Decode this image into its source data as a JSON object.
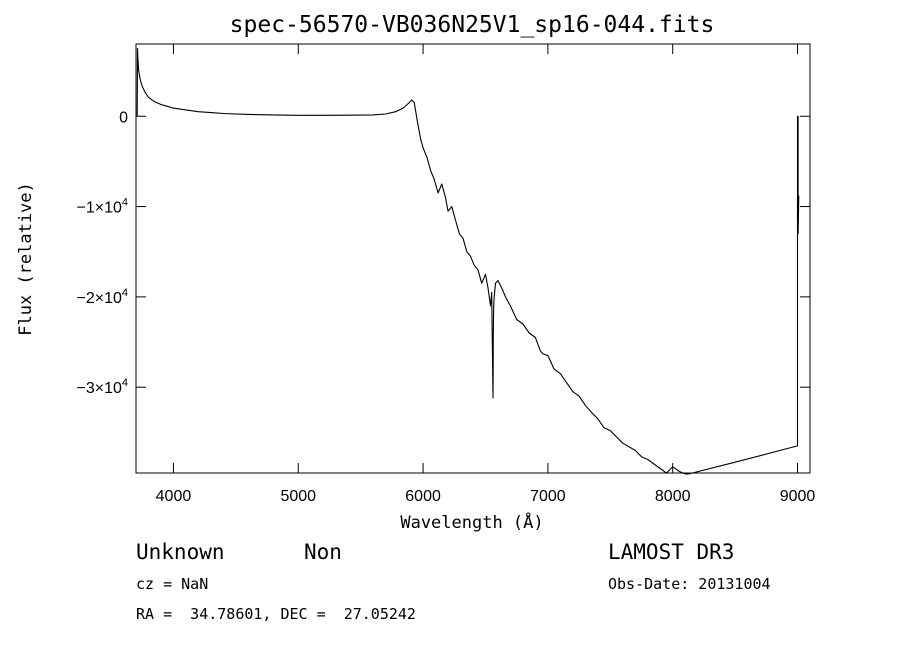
{
  "chart_data": {
    "type": "line",
    "title": "spec-56570-VB036N25V1_sp16-044.fits",
    "xlabel": "Wavelength (Å)",
    "ylabel": "Flux (relative)",
    "xlim": [
      3700,
      9100
    ],
    "ylim": [
      -39500,
      8000
    ],
    "grid": false,
    "x_ticks": [
      {
        "value": 4000,
        "label": "4000"
      },
      {
        "value": 5000,
        "label": "5000"
      },
      {
        "value": 6000,
        "label": "6000"
      },
      {
        "value": 7000,
        "label": "7000"
      },
      {
        "value": 8000,
        "label": "8000"
      },
      {
        "value": 9000,
        "label": "9000"
      }
    ],
    "y_ticks": [
      {
        "value": 0,
        "mantissa": "0",
        "exponent": ""
      },
      {
        "value": -10000,
        "mantissa": "−1×10",
        "exponent": "4"
      },
      {
        "value": -20000,
        "mantissa": "−2×10",
        "exponent": "4"
      },
      {
        "value": -30000,
        "mantissa": "−3×10",
        "exponent": "4"
      }
    ],
    "series": [
      {
        "x": [
          3710,
          3712,
          3716,
          3722,
          3735,
          3750,
          3775,
          3800,
          3850,
          3900,
          3950,
          4000,
          4100,
          4200,
          4300,
          4400,
          4600,
          4800,
          5000,
          5200,
          5400,
          5600,
          5700,
          5780,
          5840,
          5880,
          5910,
          5930,
          5950,
          5960,
          5980,
          6000,
          6030,
          6060,
          6090,
          6120,
          6150,
          6180,
          6200,
          6230,
          6260,
          6290,
          6320,
          6350,
          6380,
          6410,
          6440,
          6470,
          6500,
          6520,
          6540,
          6550,
          6555,
          6560,
          6563,
          6566,
          6570,
          6580,
          6600,
          6630,
          6660,
          6700,
          6750,
          6800,
          6850,
          6900,
          6940,
          6960,
          7000,
          7050,
          7100,
          7150,
          7200,
          7250,
          7300,
          7350,
          7400,
          7450,
          7500,
          7550,
          7600,
          7650,
          7700,
          7750,
          7800,
          7850,
          7900,
          7950,
          8000,
          8050,
          8100,
          8130,
          8500,
          9000,
          9000,
          9005,
          9005,
          9010
        ],
        "y": [
          0,
          7500,
          6200,
          5000,
          4000,
          3300,
          2600,
          2100,
          1600,
          1300,
          1100,
          900,
          700,
          500,
          400,
          300,
          200,
          150,
          100,
          100,
          120,
          150,
          250,
          500,
          900,
          1400,
          1800,
          1500,
          -200,
          -1000,
          -2500,
          -3500,
          -4500,
          -6000,
          -7000,
          -8500,
          -7500,
          -9000,
          -10500,
          -10000,
          -11500,
          -13000,
          -13500,
          -15000,
          -15500,
          -16500,
          -17000,
          -18500,
          -17500,
          -19000,
          -21000,
          -19500,
          -25000,
          -31200,
          -24000,
          -21000,
          -20000,
          -18500,
          -18200,
          -19000,
          -20000,
          -21000,
          -22500,
          -23000,
          -24000,
          -24500,
          -26000,
          -26300,
          -26500,
          -28000,
          -28500,
          -29500,
          -30500,
          -31000,
          -32000,
          -32800,
          -33500,
          -34500,
          -34800,
          -35500,
          -36200,
          -36600,
          -37000,
          -37700,
          -38000,
          -38500,
          -39000,
          -39500,
          -38800,
          -39300,
          -39600,
          -39600,
          -38300,
          -36500,
          0,
          0,
          -13000,
          -8800
        ]
      }
    ]
  },
  "footer": {
    "object_class": "Unknown",
    "subclass": "Non",
    "survey": "LAMOST DR3",
    "cz": "cz = NaN",
    "obs_date": "Obs-Date: 20131004",
    "coords": "RA =  34.78601, DEC =  27.05242"
  }
}
